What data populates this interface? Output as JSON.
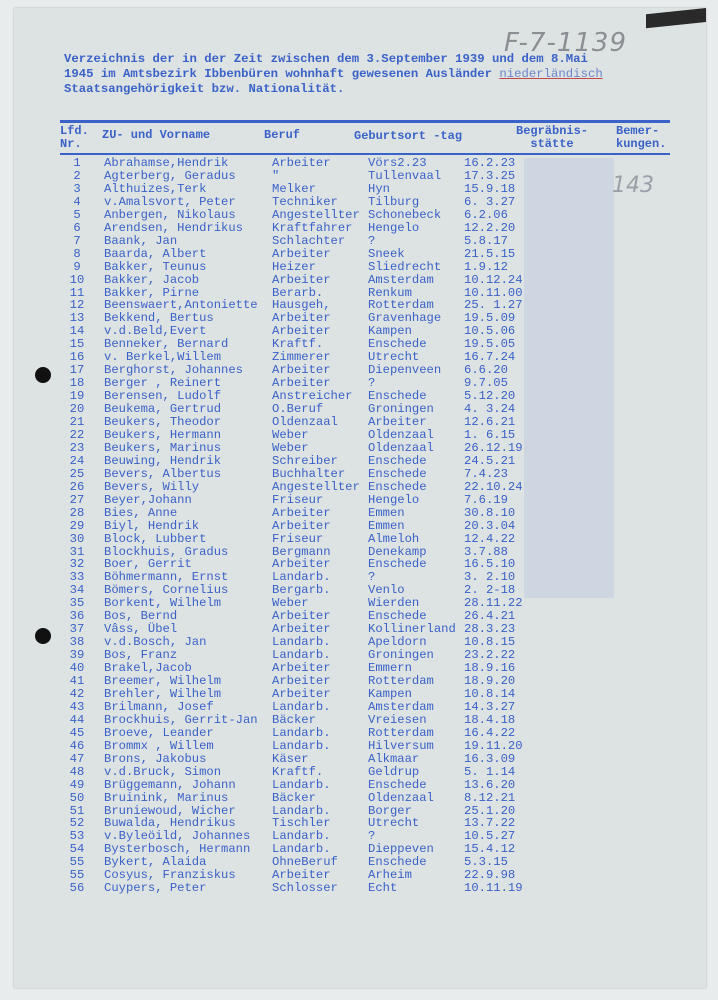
{
  "document": {
    "reference_number": "F-7-1139",
    "handwritten_note": "143",
    "title_part1": "Verzeichnis der in der Zeit zwischen dem 3.September 1939 und dem 8.Mai\n1945 im Amtsbezirk Ibbenbüren wohnhaft gewesenen Ausländer ",
    "title_nationality": "niederländisch",
    "title_part2": "\nStaatsangehörigkeit bzw. Nationalität.",
    "ink_color": "#3a62c8",
    "columns": {
      "no": "Lfd.\nNr.",
      "name": "ZU- und Vorname",
      "job": "Beruf",
      "birth": "Geburtsort -tag",
      "burial": "Begräbnis-\nstätte",
      "remarks": "Bemer-\nkungen."
    },
    "rows": [
      {
        "no": "1",
        "name": "Abrahamse,Hendrik",
        "job": "Arbeiter",
        "place": "Vörs2.23",
        "date": "16.2.23"
      },
      {
        "no": "2",
        "name": "Agterberg, Geradus",
        "job": "\"",
        "place": "Tullenvaal",
        "date": "17.3.25"
      },
      {
        "no": "3",
        "name": "Althuizes,Terk",
        "job": "Melker",
        "place": "Hyn",
        "date": "15.9.18"
      },
      {
        "no": "4",
        "name": "v.Amalsvort, Peter",
        "job": "Techniker",
        "place": "Tilburg",
        "date": "6. 3.27"
      },
      {
        "no": "5",
        "name": "Anbergen, Nikolaus",
        "job": "Angestellter",
        "place": "Schonebeck",
        "date": "6.2.06"
      },
      {
        "no": "6",
        "name": "Arendsen, Hendrikus",
        "job": "Kraftfahrer",
        "place": "Hengelo",
        "date": "12.2.20"
      },
      {
        "no": "7",
        "name": "Baank, Jan",
        "job": "Schlachter",
        "place": "?",
        "date": "5.8.17"
      },
      {
        "no": "8",
        "name": "Baarda, Albert",
        "job": "Arbeiter",
        "place": "Sneek",
        "date": "21.5.15"
      },
      {
        "no": "9",
        "name": "Bakker, Teunus",
        "job": "Heizer",
        "place": "Sliedrecht",
        "date": "1.9.12"
      },
      {
        "no": "10",
        "name": "Bakker, Jacob",
        "job": "Arbeiter",
        "place": "Amsterdam",
        "date": "10.12.24"
      },
      {
        "no": "11",
        "name": "Bakker, Pirne",
        "job": "Berarb.",
        "place": "Renkum",
        "date": "10.11.00"
      },
      {
        "no": "12",
        "name": "Beenswaert,Antoniette",
        "job": "Hausgeh,",
        "place": "Rotterdam",
        "date": "25. 1.27"
      },
      {
        "no": "13",
        "name": "Bekkend, Bertus",
        "job": "Arbeiter",
        "place": "Gravenhage",
        "date": "19.5.09"
      },
      {
        "no": "14",
        "name": "v.d.Beld,Evert",
        "job": "Arbeiter",
        "place": "Kampen",
        "date": "10.5.06"
      },
      {
        "no": "15",
        "name": "Benneker, Bernard",
        "job": "Kraftf.",
        "place": "Enschede",
        "date": "19.5.05"
      },
      {
        "no": "16",
        "name": "v. Berkel,Willem",
        "job": "Zimmerer",
        "place": "Utrecht",
        "date": "16.7.24"
      },
      {
        "no": "17",
        "name": "Berghorst, Johannes",
        "job": "Arbeiter",
        "place": "Diepenveen",
        "date": "6.6.20"
      },
      {
        "no": "18",
        "name": "Berger , Reinert",
        "job": "Arbeiter",
        "place": "?",
        "date": "9.7.05"
      },
      {
        "no": "19",
        "name": "Berensen, Ludolf",
        "job": "Anstreicher",
        "place": "Enschede",
        "date": "5.12.20"
      },
      {
        "no": "20",
        "name": "Beukema, Gertrud",
        "job": "O.Beruf",
        "place": "Groningen",
        "date": "4. 3.24"
      },
      {
        "no": "21",
        "name": "Beukers, Theodor",
        "job": "Oldenzaal",
        "place": "Arbeiter",
        "date": "12.6.21"
      },
      {
        "no": "22",
        "name": "Beukers, Hermann",
        "job": "Weber",
        "place": "Oldenzaal",
        "date": "1. 6.15"
      },
      {
        "no": "23",
        "name": "Beukers, Marinus",
        "job": "Weber",
        "place": "Oldenzaal",
        "date": "26.12.19"
      },
      {
        "no": "24",
        "name": "Beuwing, Hendrik",
        "job": "Schreiber",
        "place": "Enschede",
        "date": "24.5.21"
      },
      {
        "no": "25",
        "name": "Bevers, Albertus",
        "job": "Buchhalter",
        "place": "Enschede",
        "date": "7.4.23"
      },
      {
        "no": "26",
        "name": "Bevers, Willy",
        "job": "Angestellter",
        "place": "Enschede",
        "date": "22.10.24"
      },
      {
        "no": "27",
        "name": "Beyer,Johann",
        "job": "Friseur",
        "place": "Hengelo",
        "date": "7.6.19"
      },
      {
        "no": "28",
        "name": "Bies, Anne",
        "job": "Arbeiter",
        "place": "Emmen",
        "date": "30.8.10"
      },
      {
        "no": "29",
        "name": "Biyl, Hendrik",
        "job": "Arbeiter",
        "place": "Emmen",
        "date": "20.3.04"
      },
      {
        "no": "30",
        "name": "Block, Lubbert",
        "job": "Friseur",
        "place": "Almeloh",
        "date": "12.4.22"
      },
      {
        "no": "31",
        "name": "Blockhuis, Gradus",
        "job": "Bergmann",
        "place": "Denekamp",
        "date": "3.7.88"
      },
      {
        "no": "32",
        "name": "Boer, Gerrit",
        "job": "Arbeiter",
        "place": "Enschede",
        "date": "16.5.10"
      },
      {
        "no": "33",
        "name": "Böhmermann, Ernst",
        "job": "Landarb.",
        "place": "?",
        "date": "3. 2.10"
      },
      {
        "no": "34",
        "name": "Bömers, Cornelius",
        "job": "Bergarb.",
        "place": "Venlo",
        "date": "2. 2-18"
      },
      {
        "no": "35",
        "name": "Borkent, Wilhelm",
        "job": "Weber",
        "place": "Wierden",
        "date": "28.11.22"
      },
      {
        "no": "36",
        "name": "Bos, Bernd",
        "job": "Arbeiter",
        "place": "Enschede",
        "date": "26.4.21"
      },
      {
        "no": "37",
        "name": "Vâss, Übel",
        "job": "Arbeiter",
        "place": "Kollinerland",
        "date": "28.3.23"
      },
      {
        "no": "38",
        "name": "v.d.Bosch, Jan",
        "job": "Landarb.",
        "place": "Apeldorn",
        "date": "10.8.15"
      },
      {
        "no": "39",
        "name": "Bos, Franz",
        "job": "Landarb.",
        "place": "Groningen",
        "date": "23.2.22"
      },
      {
        "no": "40",
        "name": "Brakel,Jacob",
        "job": "Arbeiter",
        "place": "Emmern",
        "date": "18.9.16"
      },
      {
        "no": "41",
        "name": "Breemer, Wilhelm",
        "job": "Arbeiter",
        "place": "Rotterdam",
        "date": "18.9.20"
      },
      {
        "no": "42",
        "name": "Brehler, Wilhelm",
        "job": "Arbeiter",
        "place": "Kampen",
        "date": "10.8.14"
      },
      {
        "no": "43",
        "name": "Brilmann, Josef",
        "job": "Landarb.",
        "place": "Amsterdam",
        "date": "14.3.27"
      },
      {
        "no": "44",
        "name": "Brockhuis, Gerrit-Jan",
        "job": "Bäcker",
        "place": "Vreiesen",
        "date": "18.4.18"
      },
      {
        "no": "45",
        "name": "Broeve, Leander",
        "job": "Landarb.",
        "place": "Rotterdam",
        "date": "16.4.22"
      },
      {
        "no": "46",
        "name": "Brommx , Willem",
        "job": "Landarb.",
        "place": "Hilversum",
        "date": "19.11.20"
      },
      {
        "no": "47",
        "name": "Brons, Jakobus",
        "job": "Käser",
        "place": "Alkmaar",
        "date": "16.3.09"
      },
      {
        "no": "48",
        "name": "v.d.Bruck, Simon",
        "job": "Kraftf.",
        "place": "Geldrup",
        "date": "5. 1.14"
      },
      {
        "no": "49",
        "name": "Brüggemann, Johann",
        "job": "Landarb.",
        "place": "Enschede",
        "date": "13.6.20"
      },
      {
        "no": "50",
        "name": "Bruinink, Marinus",
        "job": "Bäcker",
        "place": "Oldenzaal",
        "date": "8.12.21"
      },
      {
        "no": "51",
        "name": "Bruniewoud, Wicher",
        "job": "Landarb.",
        "place": "Borger",
        "date": "25.1.20"
      },
      {
        "no": "52",
        "name": "Buwalda, Hendrikus",
        "job": "Tischler",
        "place": "Utrecht",
        "date": "13.7.22"
      },
      {
        "no": "53",
        "name": "v.Byleöild, Johannes",
        "job": "Landarb.",
        "place": "?",
        "date": "10.5.27"
      },
      {
        "no": "54",
        "name": "Bysterbosch, Hermann",
        "job": "Landarb.",
        "place": "Dieppeven",
        "date": "15.4.12"
      },
      {
        "no": "55",
        "name": "Bykert, Alaida",
        "job": "OhneBeruf",
        "place": "Enschede",
        "date": "5.3.15"
      },
      {
        "no": "55",
        "name": "Cosyus, Franziskus",
        "job": "Arbeiter",
        "place": "Arheim",
        "date": "22.9.98"
      },
      {
        "no": "56",
        "name": "Cuypers, Peter",
        "job": "Schlosser",
        "place": "Echt",
        "date": "10.11.19"
      }
    ]
  }
}
